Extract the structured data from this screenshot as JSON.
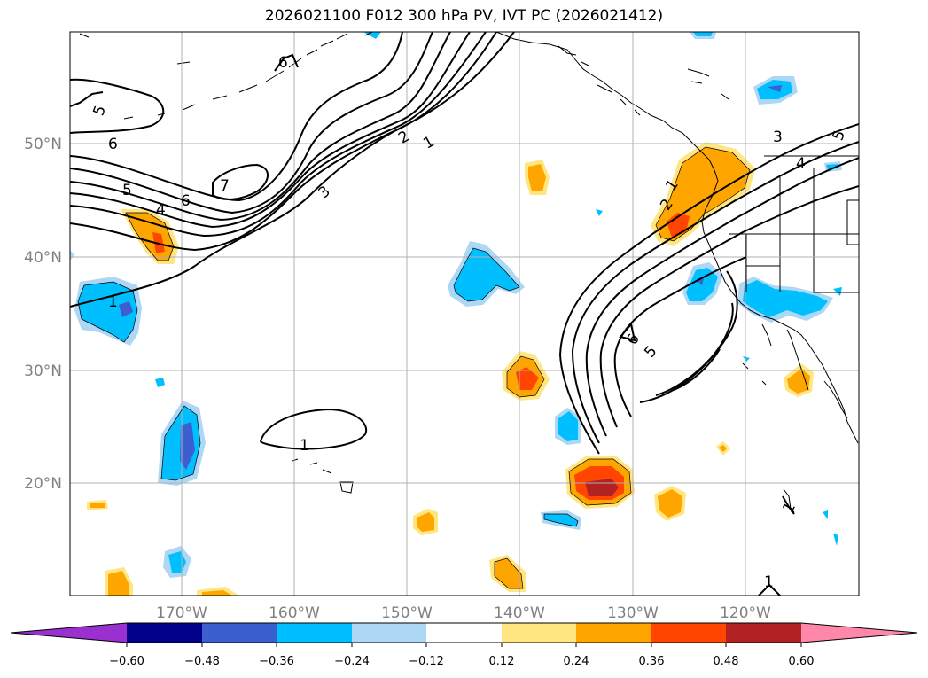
{
  "title": "2026021100 F012 300 hPa PV, IVT PC (2026021412)",
  "colors": {
    "neg_lt": "#9b30d0",
    "neg_060": "#00008b",
    "neg_048": "#3c5fd0",
    "neg_036": "#00bfff",
    "neg_024": "#add8f5",
    "neutral": "#ffffff",
    "pos_012": "#ffe680",
    "pos_024": "#ffa500",
    "pos_036": "#ff4500",
    "pos_048": "#b22222",
    "pos_gt": "#ff88aa",
    "land": "#000000",
    "grid": "#b0b0b0",
    "contour": "#000000"
  },
  "map": {
    "lat_labels": [
      "50°N",
      "40°N",
      "30°N",
      "20°N"
    ],
    "lon_labels": [
      "170°W",
      "160°W",
      "150°W",
      "140°W",
      "130°W",
      "120°W"
    ]
  },
  "contour_labels": [
    "5",
    "6",
    "5",
    "4",
    "6",
    "7",
    "6",
    "3",
    "2",
    "1",
    "1",
    "1",
    "1",
    "2",
    "3",
    "4",
    "5",
    "6",
    "5",
    "1",
    "1"
  ],
  "colorbar": {
    "ticks": [
      "−0.60",
      "−0.48",
      "−0.36",
      "−0.24",
      "−0.12",
      "0.12",
      "0.24",
      "0.36",
      "0.48",
      "0.60"
    ]
  }
}
